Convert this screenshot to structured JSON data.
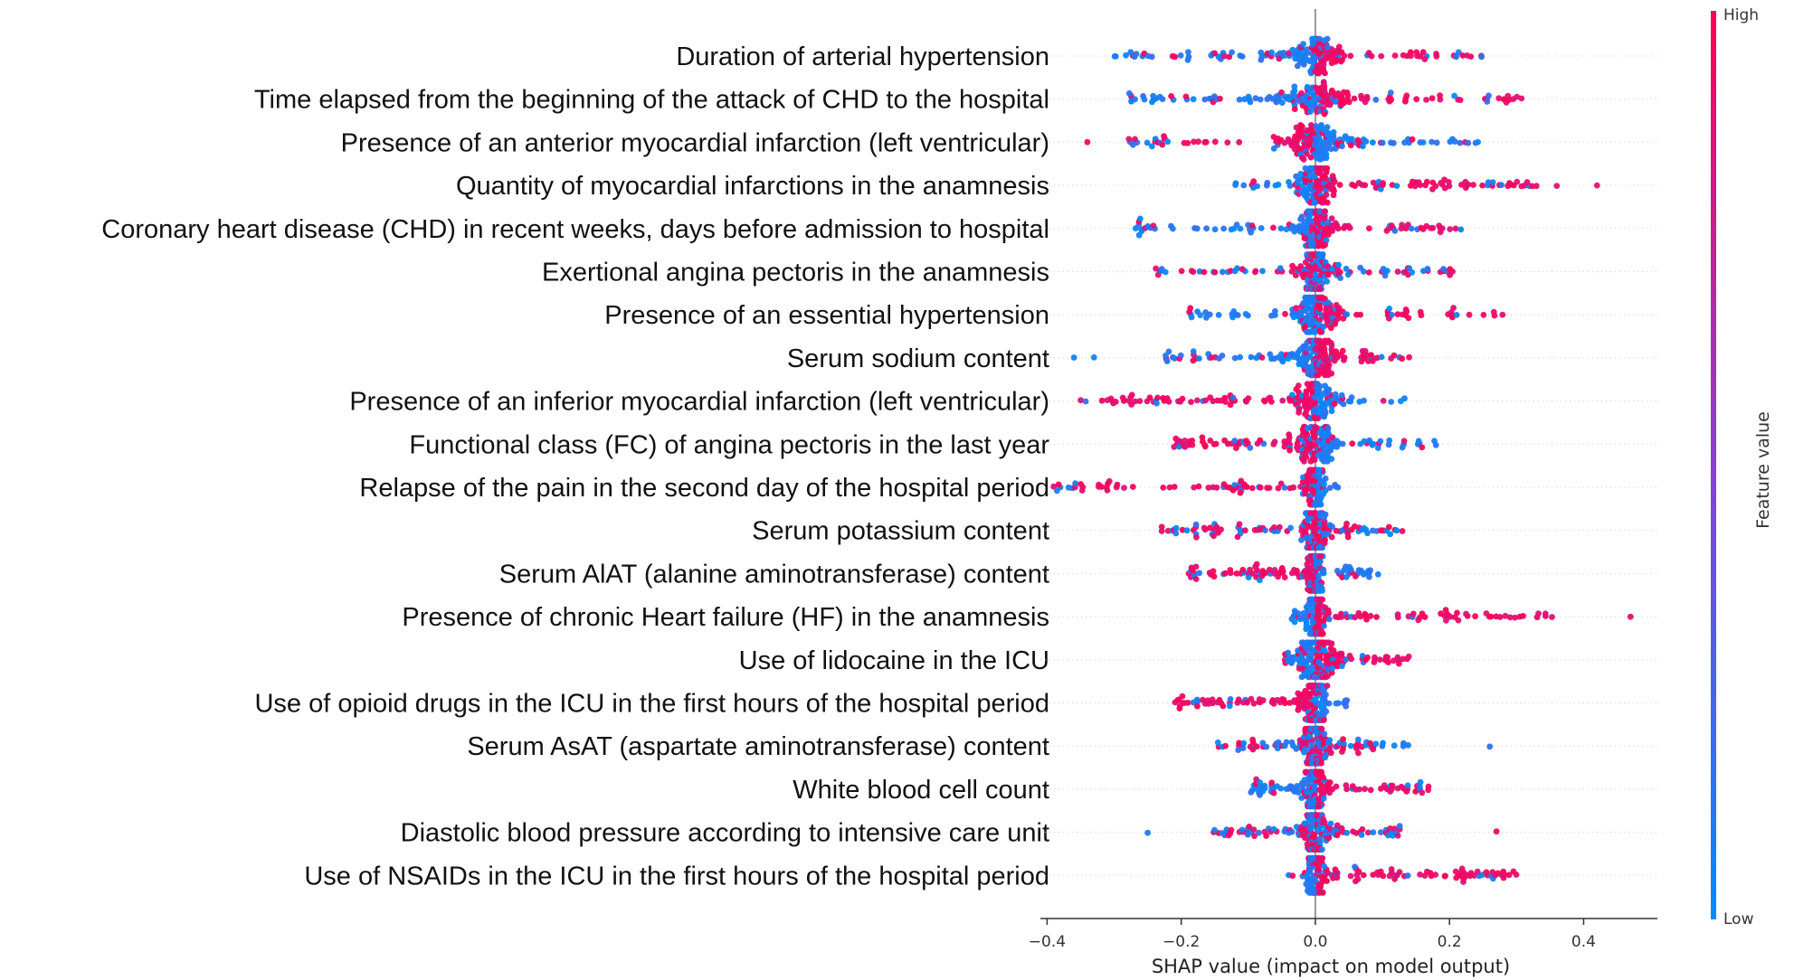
{
  "chart_data": {
    "type": "scatter",
    "subtype": "shap-beeswarm",
    "xlabel": "SHAP value (impact on model output)",
    "xlim": [
      -0.41,
      0.51
    ],
    "xticks": [
      -0.4,
      -0.2,
      0.0,
      0.2,
      0.4
    ],
    "xtick_labels": [
      "−0.4",
      "−0.2",
      "0.0",
      "0.2",
      "0.4"
    ],
    "zero_line": true,
    "colorbar": {
      "title": "Feature value",
      "high_label": "High",
      "low_label": "Low",
      "high_color": "#ff0052",
      "low_color": "#008bfb"
    },
    "features": [
      {
        "name": "Duration of arterial hypertension",
        "min": -0.3,
        "max": 0.25,
        "neg": "low",
        "spread": 0.045,
        "outliers": []
      },
      {
        "name": "Time elapsed from the beginning of the attack of CHD to the hospital",
        "min": -0.28,
        "max": 0.31,
        "neg": "low",
        "spread": 0.05,
        "outliers": []
      },
      {
        "name": "Presence of an anterior myocardial infarction (left ventricular)",
        "min": -0.29,
        "max": 0.25,
        "neg": "high",
        "spread": 0.05,
        "outliers": [
          -0.34
        ]
      },
      {
        "name": "Quantity of myocardial infarctions in the anamnesis",
        "min": -0.12,
        "max": 0.33,
        "neg": "low",
        "spread": 0.025,
        "outliers": [
          0.36,
          0.42
        ]
      },
      {
        "name": "Coronary heart disease (CHD) in recent weeks, days before admission to hospital",
        "min": -0.27,
        "max": 0.22,
        "neg": "low",
        "spread": 0.03,
        "outliers": []
      },
      {
        "name": "Exertional angina pectoris in the anamnesis",
        "min": -0.24,
        "max": 0.22,
        "neg": "mix",
        "spread": 0.025,
        "outliers": []
      },
      {
        "name": "Presence of an essential hypertension",
        "min": -0.2,
        "max": 0.29,
        "neg": "low",
        "spread": 0.03,
        "outliers": []
      },
      {
        "name": "Serum sodium content",
        "min": -0.23,
        "max": 0.14,
        "neg": "low",
        "spread": 0.03,
        "outliers": [
          -0.36,
          -0.33
        ]
      },
      {
        "name": "Presence of an inferior myocardial infarction (left ventricular)",
        "min": -0.36,
        "max": 0.14,
        "neg": "high",
        "spread": 0.03,
        "outliers": []
      },
      {
        "name": "Functional class (FC) of angina pectoris in the last year",
        "min": -0.22,
        "max": 0.18,
        "neg": "high",
        "spread": 0.04,
        "outliers": []
      },
      {
        "name": "Relapse of the pain in the second day of the hospital period",
        "min": -0.4,
        "max": 0.04,
        "neg": "high",
        "spread": 0.015,
        "outliers": []
      },
      {
        "name": "Serum potassium content",
        "min": -0.23,
        "max": 0.13,
        "neg": "mix",
        "spread": 0.02,
        "outliers": []
      },
      {
        "name": "Serum AlAT (alanine aminotransferase) content",
        "min": -0.19,
        "max": 0.1,
        "neg": "high",
        "spread": 0.015,
        "outliers": []
      },
      {
        "name": "Presence of chronic Heart failure (HF) in the anamnesis",
        "min": -0.04,
        "max": 0.36,
        "neg": "low",
        "spread": 0.015,
        "outliers": [
          0.47
        ]
      },
      {
        "name": "Use of lidocaine in the ICU",
        "min": -0.05,
        "max": 0.14,
        "neg": "low",
        "spread": 0.03,
        "outliers": []
      },
      {
        "name": "Use of opioid drugs in the ICU in the first hours of the hospital period",
        "min": -0.21,
        "max": 0.05,
        "neg": "high",
        "spread": 0.02,
        "outliers": []
      },
      {
        "name": "Serum AsAT (aspartate aminotransferase) content",
        "min": -0.15,
        "max": 0.14,
        "neg": "mix",
        "spread": 0.02,
        "outliers": [
          0.26
        ]
      },
      {
        "name": "White blood cell count",
        "min": -0.1,
        "max": 0.17,
        "neg": "low",
        "spread": 0.02,
        "outliers": []
      },
      {
        "name": "Diastolic blood pressure according to intensive care unit",
        "min": -0.16,
        "max": 0.13,
        "neg": "mix",
        "spread": 0.02,
        "outliers": [
          -0.25,
          0.27
        ]
      },
      {
        "name": "Use of NSAIDs in the ICU in the first hours of the hospital period",
        "min": -0.05,
        "max": 0.3,
        "neg": "low",
        "spread": 0.015,
        "outliers": []
      }
    ]
  }
}
